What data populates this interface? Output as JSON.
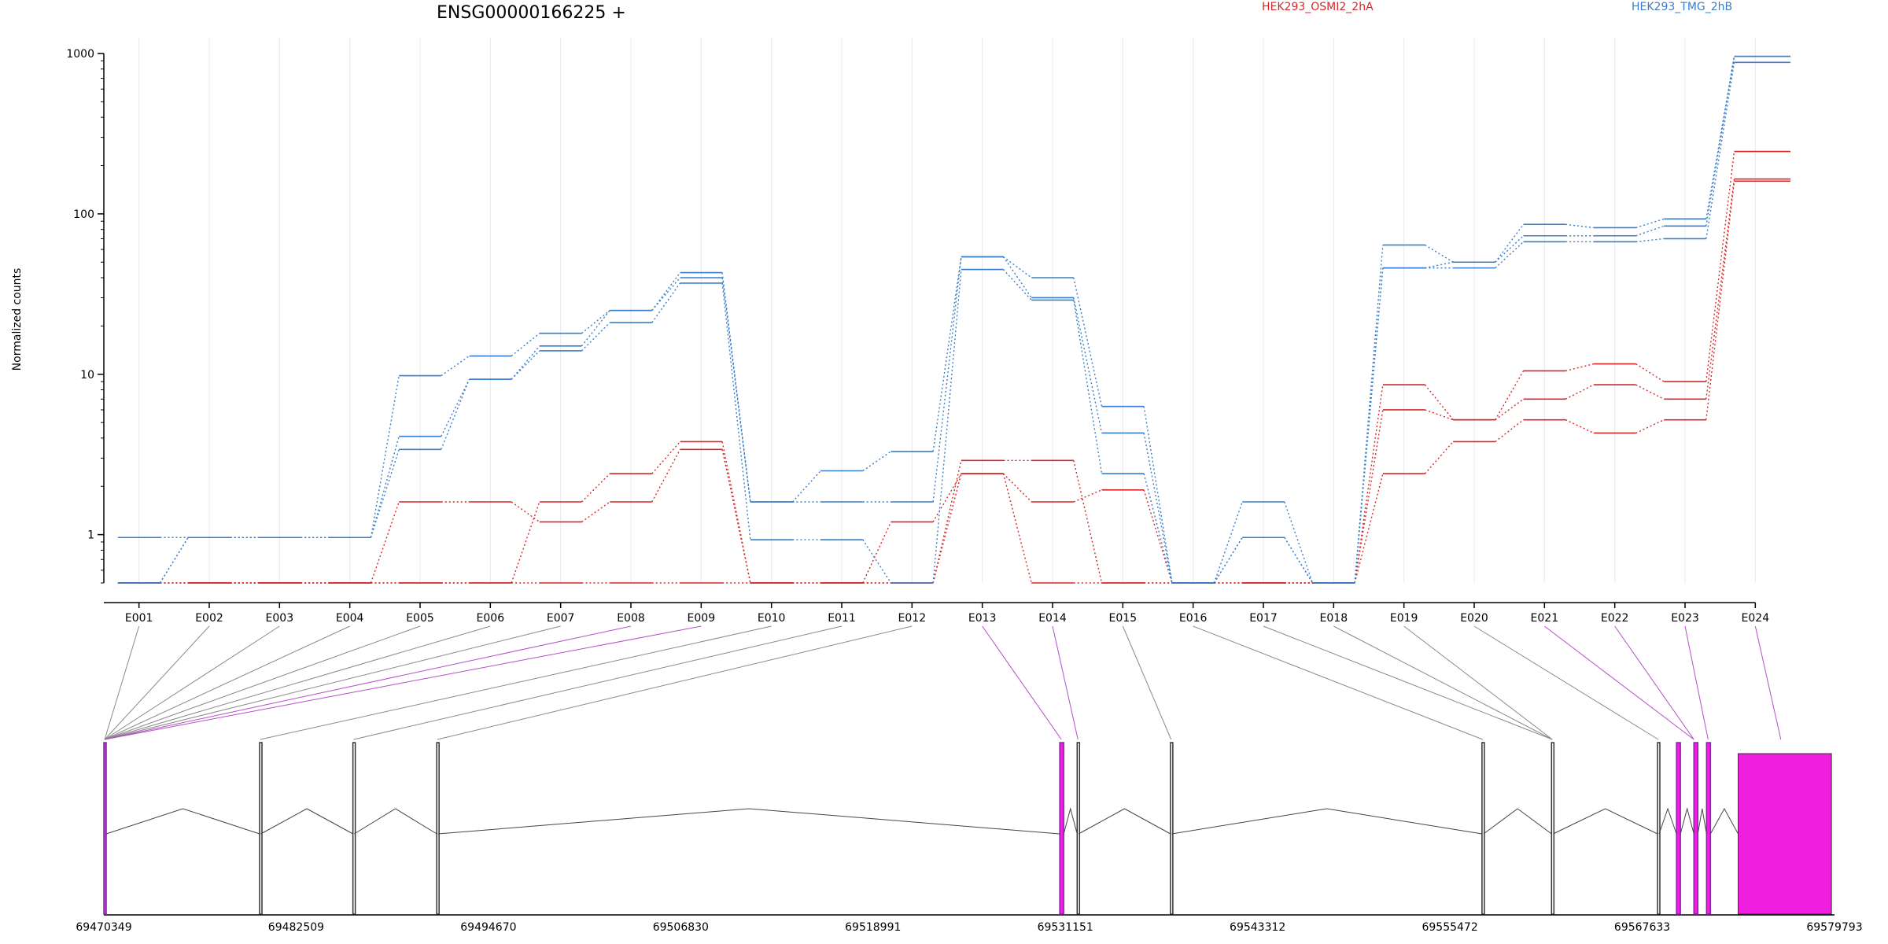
{
  "title": "ENSG00000166225 +",
  "legend": [
    {
      "name": "HEK293_OSMI2_2hA",
      "color": "#d62728"
    },
    {
      "name": "HEK293_TMG_2hB",
      "color": "#3a7dc8"
    }
  ],
  "chart_data": {
    "type": "line",
    "title": "ENSG00000166225 +",
    "ylabel": "Normalized counts",
    "xlabel": "",
    "yscale": "log",
    "ylim": [
      0.5,
      1000
    ],
    "yticks": [
      {
        "value": 1,
        "label": "1"
      },
      {
        "value": 10,
        "label": "10"
      },
      {
        "value": 100,
        "label": "100"
      },
      {
        "value": 1000,
        "label": "1000"
      }
    ],
    "categories": [
      "E001",
      "E002",
      "E003",
      "E004",
      "E005",
      "E006",
      "E007",
      "E008",
      "E009",
      "E010",
      "E011",
      "E012",
      "E013",
      "E014",
      "E015",
      "E016",
      "E017",
      "E018",
      "E019",
      "E020",
      "E021",
      "E022",
      "E023",
      "E024"
    ],
    "series": [
      {
        "group": "HEK293_OSMI2_2hA",
        "color": "#d62728",
        "values": [
          0.5,
          0.5,
          0.5,
          0.5,
          0.5,
          0.5,
          0.5,
          0.5,
          0.5,
          0.5,
          0.5,
          0.5,
          2.4,
          0.5,
          0.5,
          0.5,
          0.5,
          0.5,
          2.4,
          3.8,
          5.2,
          4.3,
          5.2,
          160
        ]
      },
      {
        "group": "HEK293_OSMI2_2hA",
        "color": "#d62728",
        "values": [
          0.5,
          0.5,
          0.5,
          0.5,
          1.6,
          1.6,
          1.2,
          1.6,
          3.4,
          0.5,
          0.5,
          1.2,
          2.4,
          1.6,
          1.9,
          0.5,
          0.5,
          0.5,
          6.0,
          5.2,
          7.0,
          8.6,
          7.0,
          165
        ]
      },
      {
        "group": "HEK293_OSMI2_2hA",
        "color": "#d62728",
        "values": [
          0.5,
          0.5,
          0.5,
          0.5,
          0.5,
          0.5,
          1.6,
          2.4,
          3.8,
          0.5,
          0.5,
          0.5,
          2.9,
          2.9,
          0.5,
          0.5,
          0.5,
          0.5,
          8.6,
          5.2,
          10.5,
          11.6,
          9.0,
          245
        ]
      },
      {
        "group": "HEK293_TMG_2hB",
        "color": "#3a7dc8",
        "values": [
          0.96,
          0.96,
          0.96,
          0.96,
          3.4,
          9.3,
          14.0,
          21.0,
          37.0,
          0.93,
          0.93,
          0.5,
          45.0,
          29.0,
          2.4,
          0.5,
          0.96,
          0.5,
          46.0,
          46.0,
          67.0,
          67.0,
          70.0,
          880
        ]
      },
      {
        "group": "HEK293_TMG_2hB",
        "color": "#3a7dc8",
        "values": [
          0.5,
          0.96,
          0.96,
          0.96,
          4.1,
          9.3,
          15.0,
          25.0,
          40.0,
          1.6,
          1.6,
          1.6,
          54.0,
          30.0,
          4.3,
          0.5,
          0.96,
          0.5,
          46.0,
          50.0,
          73.0,
          73.0,
          84.0,
          960
        ]
      },
      {
        "group": "HEK293_TMG_2hB",
        "color": "#3a7dc8",
        "values": [
          0.5,
          0.96,
          0.96,
          0.96,
          9.8,
          13.0,
          18.0,
          25.0,
          43.0,
          1.6,
          2.5,
          3.3,
          54.0,
          40.0,
          6.3,
          0.5,
          1.6,
          0.5,
          64.0,
          50.0,
          86.0,
          82.0,
          93.0,
          960
        ]
      }
    ],
    "genome_axis": {
      "start": 69470349,
      "end": 69579793,
      "ticks": [
        69470349,
        69482509,
        69494670,
        69506830,
        69518991,
        69531151,
        69543312,
        69555472,
        69567633,
        69579793
      ]
    },
    "exons": [
      {
        "id": "E001",
        "start": 69470349,
        "end": 69470500,
        "highlight": true
      },
      {
        "id": "E010",
        "start": 69480200,
        "end": 69480280,
        "highlight": false
      },
      {
        "id": "E011",
        "start": 69486100,
        "end": 69486180,
        "highlight": false
      },
      {
        "id": "E012",
        "start": 69491400,
        "end": 69491480,
        "highlight": false
      },
      {
        "id": "E013",
        "start": 69530800,
        "end": 69531050,
        "highlight": true
      },
      {
        "id": "E014",
        "start": 69531900,
        "end": 69531990,
        "highlight": false
      },
      {
        "id": "E015",
        "start": 69537800,
        "end": 69537880,
        "highlight": false
      },
      {
        "id": "E018",
        "start": 69557500,
        "end": 69557600,
        "highlight": false
      },
      {
        "id": "E019",
        "start": 69561900,
        "end": 69562000,
        "highlight": false
      },
      {
        "id": "E020",
        "start": 69568600,
        "end": 69568700,
        "highlight": false
      },
      {
        "id": "E021",
        "start": 69569800,
        "end": 69570050,
        "highlight": true
      },
      {
        "id": "E022",
        "start": 69570900,
        "end": 69571150,
        "highlight": true
      },
      {
        "id": "E023",
        "start": 69571700,
        "end": 69571950,
        "highlight": true
      },
      {
        "id": "E024",
        "start": 69573700,
        "end": 69579600,
        "highlight": true
      }
    ],
    "mapping": [
      {
        "exon": "E001",
        "genome": 69470400
      },
      {
        "exon": "E002",
        "genome": 69470400
      },
      {
        "exon": "E003",
        "genome": 69470400
      },
      {
        "exon": "E004",
        "genome": 69470400
      },
      {
        "exon": "E005",
        "genome": 69470400
      },
      {
        "exon": "E006",
        "genome": 69470400
      },
      {
        "exon": "E007",
        "genome": 69470400
      },
      {
        "exon": "E008",
        "genome": 69470400
      },
      {
        "exon": "E009",
        "genome": 69470400
      },
      {
        "exon": "E010",
        "genome": 69480240
      },
      {
        "exon": "E011",
        "genome": 69486140
      },
      {
        "exon": "E012",
        "genome": 69491440
      },
      {
        "exon": "E013",
        "genome": 69530900
      },
      {
        "exon": "E014",
        "genome": 69531950
      },
      {
        "exon": "E015",
        "genome": 69537840
      },
      {
        "exon": "E016",
        "genome": 69557550
      },
      {
        "exon": "E017",
        "genome": 69561950
      },
      {
        "exon": "E018",
        "genome": 69561950
      },
      {
        "exon": "E019",
        "genome": 69561950
      },
      {
        "exon": "E020",
        "genome": 69568650
      },
      {
        "exon": "E021",
        "genome": 69570900
      },
      {
        "exon": "E022",
        "genome": 69570900
      },
      {
        "exon": "E023",
        "genome": 69571800
      },
      {
        "exon": "E024",
        "genome": 69576400
      }
    ],
    "mapping_highlight": [
      "E008",
      "E009",
      "E013",
      "E014",
      "E021",
      "E022",
      "E023",
      "E024"
    ],
    "highlight_color": "#f01fe0"
  }
}
